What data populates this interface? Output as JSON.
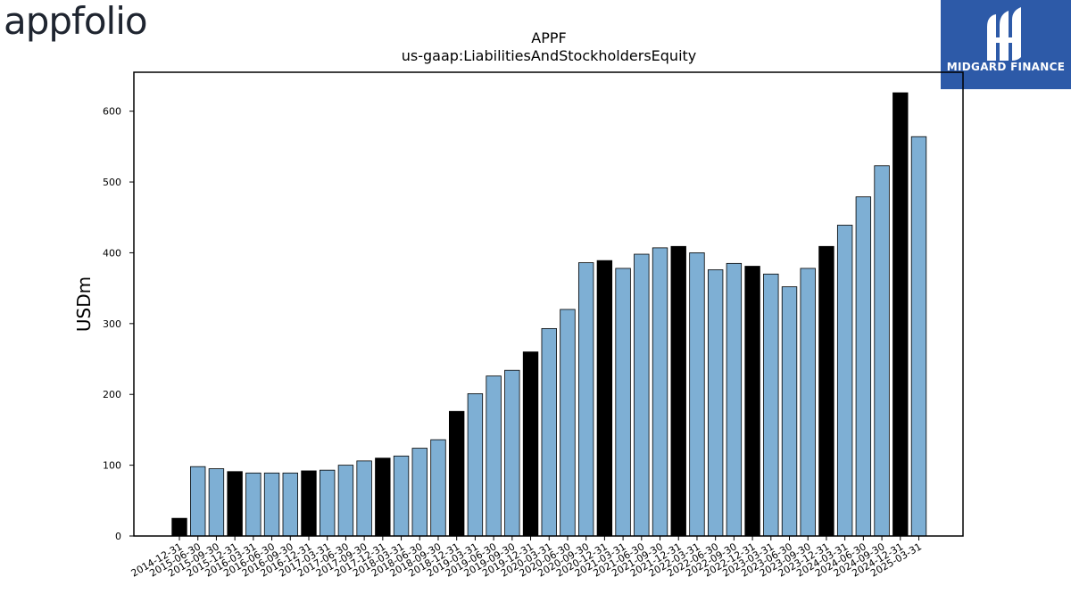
{
  "logos": {
    "left_brand": "appfolio",
    "right_brand": "MIDGARD FINANCE"
  },
  "chart_data": {
    "type": "bar",
    "title": "APPF",
    "subtitle": "us-gaap:LiabilitiesAndStockholdersEquity",
    "ylabel": "USDm",
    "xlabel": "",
    "ylim": [
      0,
      655
    ],
    "yticks": [
      0,
      100,
      200,
      300,
      400,
      500,
      600
    ],
    "grid": false,
    "colors": {
      "quarter": "#7eafd4",
      "year_end": "#000000",
      "edge": "#000000"
    },
    "categories": [
      "2014-12-31",
      "2015-06-30",
      "2015-09-30",
      "2015-12-31",
      "2016-03-31",
      "2016-06-30",
      "2016-09-30",
      "2016-12-31",
      "2017-03-31",
      "2017-06-30",
      "2017-09-30",
      "2017-12-31",
      "2018-03-31",
      "2018-06-30",
      "2018-09-30",
      "2018-12-31",
      "2019-03-31",
      "2019-06-30",
      "2019-09-30",
      "2019-12-31",
      "2020-03-31",
      "2020-06-30",
      "2020-09-30",
      "2020-12-31",
      "2021-03-31",
      "2021-06-30",
      "2021-09-30",
      "2021-12-31",
      "2022-03-31",
      "2022-06-30",
      "2022-09-30",
      "2022-12-31",
      "2023-03-31",
      "2023-06-30",
      "2023-09-30",
      "2023-12-31",
      "2024-03-31",
      "2024-06-30",
      "2024-09-30",
      "2024-12-31",
      "2025-03-31"
    ],
    "values": [
      25,
      98,
      95,
      91,
      89,
      89,
      89,
      92,
      93,
      100,
      106,
      110,
      113,
      124,
      136,
      176,
      201,
      226,
      234,
      260,
      293,
      320,
      386,
      389,
      378,
      398,
      407,
      409,
      400,
      376,
      385,
      381,
      370,
      352,
      378,
      409,
      439,
      479,
      523,
      626,
      564
    ]
  }
}
